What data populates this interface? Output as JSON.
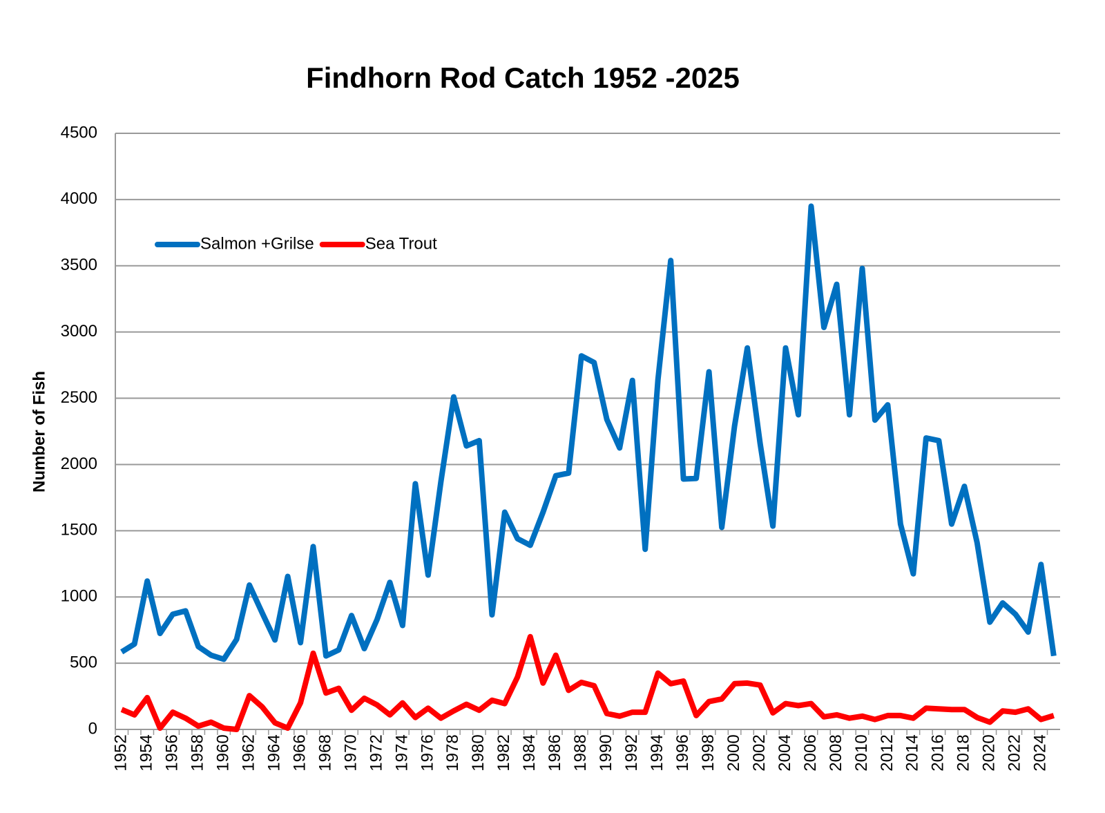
{
  "chart_data": {
    "type": "line",
    "title": "Findhorn Rod Catch 1952 -2025",
    "y_label": "Number of Fish",
    "categories": [
      "1952",
      null,
      "1954",
      null,
      "1956",
      null,
      "1958",
      null,
      "1960",
      null,
      "1962",
      null,
      "1964",
      null,
      "1966",
      null,
      "1968",
      null,
      "1970",
      null,
      "1972",
      null,
      "1974",
      null,
      "1976",
      null,
      "1978",
      null,
      "1980",
      null,
      "1982",
      null,
      "1984",
      null,
      "1986",
      null,
      "1988",
      null,
      "1990",
      null,
      "1992",
      null,
      "1994",
      null,
      "1996",
      null,
      "1998",
      null,
      "2000",
      null,
      "2002",
      null,
      "2004",
      null,
      "2006",
      null,
      "2008",
      null,
      "2010",
      null,
      "2012",
      null,
      "2014",
      null,
      "2016",
      null,
      "2018",
      null,
      "2020",
      null,
      "2022",
      null,
      "2024",
      null
    ],
    "series": [
      {
        "name": "Salmon +Grilse",
        "color": "#0070c0",
        "values": [
          585,
          645,
          1120,
          725,
          870,
          895,
          625,
          560,
          530,
          680,
          1090,
          880,
          675,
          1155,
          655,
          1380,
          555,
          600,
          860,
          610,
          830,
          1110,
          785,
          1855,
          1165,
          1870,
          2510,
          2140,
          2180,
          865,
          1640,
          1440,
          1390,
          1640,
          1915,
          1935,
          2820,
          2770,
          2340,
          2125,
          2635,
          1360,
          2640,
          3540,
          1890,
          1895,
          2700,
          1525,
          2290,
          2880,
          2160,
          1535,
          2880,
          2375,
          3950,
          3035,
          3360,
          2375,
          3480,
          2335,
          2450,
          1550,
          1175,
          2200,
          2180,
          1550,
          1835,
          1410,
          810,
          955,
          870,
          735,
          1245,
          555
        ]
      },
      {
        "name": "Sea Trout",
        "color": "#ff0000",
        "values": [
          150,
          110,
          240,
          10,
          130,
          85,
          25,
          55,
          10,
          0,
          255,
          170,
          50,
          10,
          200,
          575,
          275,
          310,
          145,
          235,
          185,
          110,
          200,
          90,
          160,
          85,
          140,
          190,
          145,
          220,
          195,
          395,
          700,
          350,
          560,
          295,
          355,
          330,
          120,
          100,
          130,
          130,
          425,
          345,
          365,
          105,
          210,
          230,
          345,
          350,
          335,
          125,
          195,
          180,
          195,
          95,
          110,
          85,
          100,
          75,
          105,
          105,
          85,
          160,
          155,
          150,
          150,
          90,
          55,
          140,
          130,
          155,
          75,
          105
        ]
      }
    ],
    "ylim": [
      0,
      4500
    ],
    "yticks": [
      0,
      500,
      1000,
      1500,
      2000,
      2500,
      3000,
      3500,
      4000,
      4500
    ],
    "grid": true,
    "legend": "upper left"
  }
}
